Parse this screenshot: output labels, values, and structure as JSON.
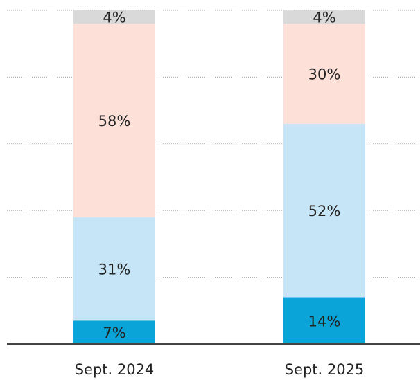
{
  "chart_data": {
    "type": "stacked_bar",
    "categories": [
      "Sept. 2024",
      "Sept. 2025"
    ],
    "series": [
      {
        "color": "#0aa4d8",
        "values": [
          7,
          14
        ],
        "value_labels": [
          "7%",
          "14%"
        ]
      },
      {
        "color": "#c6e5f6",
        "values": [
          31,
          52
        ],
        "value_labels": [
          "31%",
          "52%"
        ]
      },
      {
        "color": "#fde1d9",
        "values": [
          58,
          30
        ],
        "value_labels": [
          "58%",
          "30%"
        ]
      },
      {
        "color": "#d9d9d9",
        "values": [
          4,
          4
        ],
        "value_labels": [
          "4%",
          "4%"
        ]
      }
    ],
    "ylim": [
      0,
      100
    ],
    "yticks": [
      0,
      20,
      40,
      60,
      80,
      100
    ],
    "grid": true
  }
}
